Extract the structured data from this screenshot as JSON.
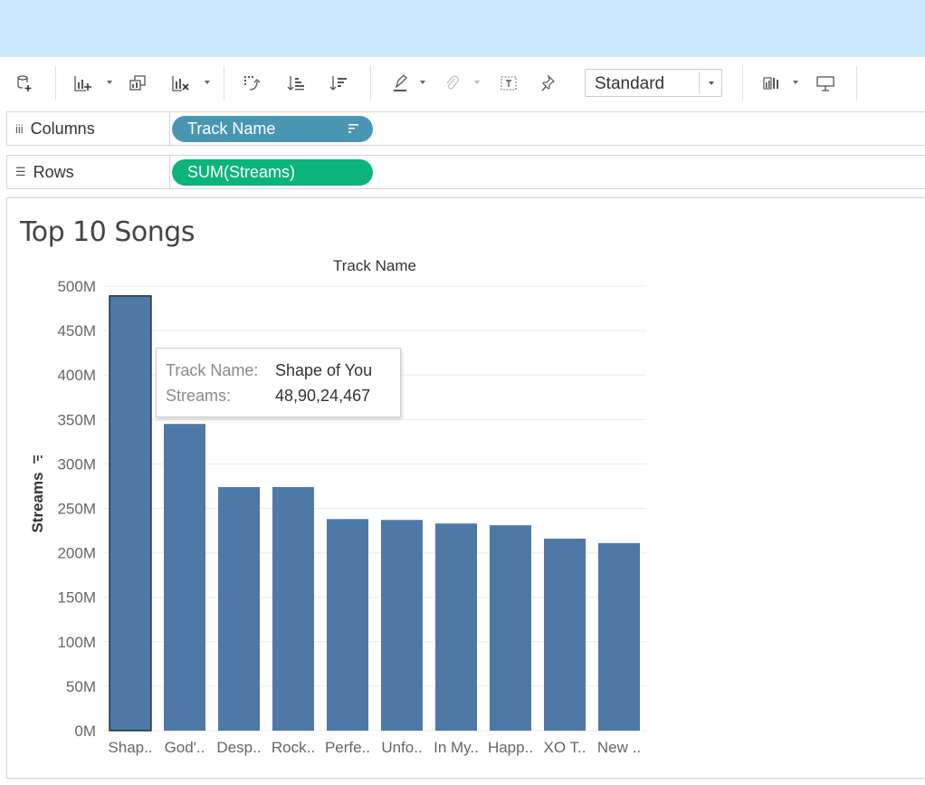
{
  "toolbar": {
    "fit_value": "Standard",
    "icons": [
      "new-data-source-icon",
      "new-worksheet-icon",
      "duplicate-icon",
      "clear-sheet-icon",
      "swap-icon",
      "sort-ascending-icon",
      "sort-descending-icon",
      "highlight-icon",
      "group-icon",
      "labels-icon",
      "pin-icon",
      "show-me-icon",
      "presentation-icon"
    ]
  },
  "shelves": {
    "columns": {
      "label": "Columns",
      "pill": "Track Name"
    },
    "rows": {
      "label": "Rows",
      "pill": "SUM(Streams)"
    }
  },
  "sheet": {
    "title": "Top 10 Songs"
  },
  "chart_data": {
    "type": "bar",
    "title": "Track Name",
    "xlabel": "Track Name",
    "ylabel": "Streams",
    "ylim": [
      0,
      500000000
    ],
    "yticks": [
      0,
      50000000,
      100000000,
      150000000,
      200000000,
      250000000,
      300000000,
      350000000,
      400000000,
      450000000,
      500000000
    ],
    "ytick_labels": [
      "0M",
      "50M",
      "100M",
      "150M",
      "200M",
      "250M",
      "300M",
      "350M",
      "400M",
      "450M",
      "500M"
    ],
    "categories": [
      "Shap..",
      "God'..",
      "Desp..",
      "Rock..",
      "Perfe..",
      "Unfo..",
      "In My..",
      "Happ..",
      "XO T..",
      "New .."
    ],
    "values": [
      489024467,
      345000000,
      274000000,
      274000000,
      238000000,
      237000000,
      233000000,
      231000000,
      216000000,
      211000000
    ],
    "bar_color": "#4e79a7",
    "selected_index": 0
  },
  "tooltip": {
    "track_key": "Track Name:",
    "track_value": "Shape of You",
    "streams_key": "Streams:",
    "streams_value": "48,90,24,467"
  }
}
